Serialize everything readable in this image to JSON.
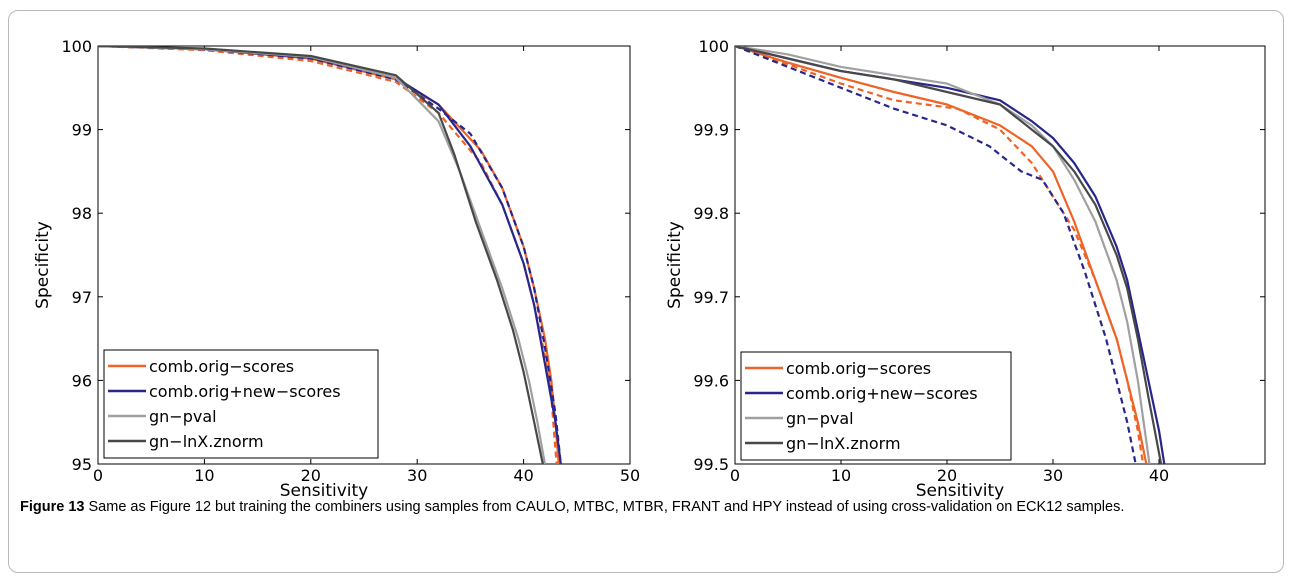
{
  "caption": {
    "label": "Figure 13",
    "text": "Same as Figure 12 but training the combiners using samples from CAULO, MTBC, MTBR, FRANT and HPY instead of using cross-validation on ECK12 samples."
  },
  "chart_data": [
    {
      "type": "line",
      "xlabel": "Sensitivity",
      "ylabel": "Specificity",
      "xlim": [
        0,
        50
      ],
      "ylim": [
        95,
        100
      ],
      "xticks": [
        0,
        10,
        20,
        30,
        40,
        50
      ],
      "yticks": [
        95,
        96,
        97,
        98,
        99,
        100
      ],
      "legend": "bottom-left",
      "grid": false,
      "legend_items": [
        {
          "name": "comb.orig−scores",
          "color": "#f06326"
        },
        {
          "name": "comb.orig+new−scores",
          "color": "#26268c"
        },
        {
          "name": "gn−pval",
          "color": "#a0a0a0"
        },
        {
          "name": "gn−lnX.znorm",
          "color": "#484848"
        }
      ],
      "series": [
        {
          "color": "#f06326",
          "style": "solid",
          "x": [
            0,
            10,
            20,
            28,
            32,
            36,
            38,
            40,
            41,
            42,
            42.6,
            43,
            43.3
          ],
          "y": [
            100,
            99.96,
            99.85,
            99.6,
            99.3,
            98.75,
            98.3,
            97.6,
            97.1,
            96.5,
            96.0,
            95.5,
            95.0
          ]
        },
        {
          "color": "#f06326",
          "style": "dashed",
          "x": [
            0,
            10,
            20,
            28,
            32,
            36,
            38,
            40,
            41,
            42,
            42.6,
            43.1
          ],
          "y": [
            100,
            99.95,
            99.82,
            99.57,
            99.2,
            98.6,
            98.1,
            97.4,
            96.9,
            96.3,
            95.8,
            95.0
          ]
        },
        {
          "color": "#26268c",
          "style": "solid",
          "x": [
            0,
            10,
            20,
            28,
            32,
            35,
            38,
            40,
            41,
            42,
            43,
            43.5
          ],
          "y": [
            100,
            99.96,
            99.86,
            99.62,
            99.3,
            98.8,
            98.1,
            97.4,
            96.9,
            96.2,
            95.5,
            95.0
          ]
        },
        {
          "color": "#26268c",
          "style": "dashed",
          "x": [
            0,
            10,
            20,
            28,
            32,
            35,
            38,
            40,
            41,
            42,
            43,
            43.5
          ],
          "y": [
            100,
            99.96,
            99.85,
            99.6,
            99.25,
            98.95,
            98.3,
            97.6,
            97.1,
            96.4,
            95.6,
            95.0
          ]
        },
        {
          "color": "#a0a0a0",
          "style": "solid",
          "x": [
            0,
            10,
            20,
            28,
            32,
            34,
            36,
            38,
            39.5,
            40.5,
            41.3,
            42.0
          ],
          "y": [
            100,
            99.96,
            99.87,
            99.62,
            99.1,
            98.5,
            97.8,
            97.1,
            96.5,
            96.0,
            95.5,
            95.0
          ]
        },
        {
          "color": "#484848",
          "style": "solid",
          "x": [
            0,
            10,
            20,
            28,
            32,
            33.5,
            35.5,
            37.5,
            39,
            40,
            41,
            41.8
          ],
          "y": [
            100,
            99.97,
            99.88,
            99.65,
            99.2,
            98.7,
            97.9,
            97.2,
            96.6,
            96.1,
            95.5,
            95.0
          ]
        }
      ]
    },
    {
      "type": "line",
      "xlabel": "Sensitivity",
      "ylabel": "Specificity",
      "xlim": [
        0,
        50
      ],
      "ylim": [
        99.5,
        100
      ],
      "xticks": [
        0,
        10,
        20,
        30,
        40
      ],
      "yticks": [
        99.5,
        99.6,
        99.7,
        99.8,
        99.9,
        100
      ],
      "legend": "bottom-left",
      "grid": false,
      "legend_items": [
        {
          "name": "comb.orig−scores",
          "color": "#f06326"
        },
        {
          "name": "comb.orig+new−scores",
          "color": "#26268c"
        },
        {
          "name": "gn−pval",
          "color": "#a0a0a0"
        },
        {
          "name": "gn−lnX.znorm",
          "color": "#484848"
        }
      ],
      "series": [
        {
          "color": "#f06326",
          "style": "solid",
          "x": [
            0,
            5,
            10,
            15,
            20,
            25,
            28,
            30,
            32,
            34,
            36,
            37,
            38,
            38.8
          ],
          "y": [
            100,
            99.98,
            99.962,
            99.945,
            99.93,
            99.905,
            99.88,
            99.85,
            99.79,
            99.72,
            99.65,
            99.6,
            99.55,
            99.5
          ]
        },
        {
          "color": "#f06326",
          "style": "dashed",
          "x": [
            0,
            5,
            10,
            15,
            21,
            25,
            28,
            30,
            32,
            34,
            36,
            37,
            38,
            38.5
          ],
          "y": [
            100,
            99.978,
            99.955,
            99.935,
            99.925,
            99.9,
            99.86,
            99.82,
            99.78,
            99.72,
            99.65,
            99.6,
            99.54,
            99.5
          ]
        },
        {
          "color": "#26268c",
          "style": "solid",
          "x": [
            0,
            5,
            10,
            15,
            20,
            25,
            28,
            30,
            32,
            34,
            36,
            37,
            38,
            39,
            40,
            40.5
          ],
          "y": [
            100,
            99.985,
            99.97,
            99.96,
            99.95,
            99.935,
            99.91,
            99.89,
            99.86,
            99.82,
            99.76,
            99.72,
            99.66,
            99.6,
            99.54,
            99.5
          ]
        },
        {
          "color": "#26268c",
          "style": "dashed",
          "x": [
            0,
            5,
            10,
            15,
            20,
            24,
            27,
            29,
            31,
            33,
            35,
            36,
            37,
            37.8
          ],
          "y": [
            100,
            99.975,
            99.95,
            99.925,
            99.905,
            99.88,
            99.85,
            99.84,
            99.8,
            99.73,
            99.65,
            99.6,
            99.55,
            99.5
          ]
        },
        {
          "color": "#a0a0a0",
          "style": "solid",
          "x": [
            0,
            5,
            10,
            15,
            20,
            25,
            28,
            30,
            32,
            34,
            36,
            37,
            38,
            39.1
          ],
          "y": [
            100,
            99.99,
            99.975,
            99.965,
            99.955,
            99.93,
            99.905,
            99.88,
            99.84,
            99.79,
            99.72,
            99.67,
            99.6,
            99.5
          ]
        },
        {
          "color": "#484848",
          "style": "solid",
          "x": [
            0,
            5,
            10,
            15,
            20,
            25,
            28,
            30,
            32,
            34,
            36,
            37,
            38,
            39,
            40.2
          ],
          "y": [
            100,
            99.985,
            99.97,
            99.96,
            99.945,
            99.93,
            99.9,
            99.88,
            99.85,
            99.81,
            99.75,
            99.71,
            99.65,
            99.58,
            99.5
          ]
        }
      ]
    }
  ]
}
